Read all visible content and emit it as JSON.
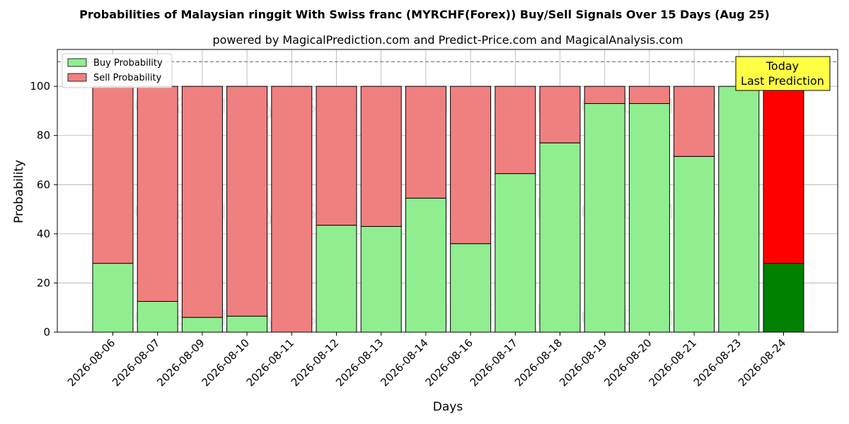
{
  "chart_data": {
    "type": "bar",
    "stacked": true,
    "title": "Probabilities of Malaysian ringgit With Swiss franc (MYRCHF(Forex)) Buy/Sell Signals Over 15 Days (Aug 25)",
    "subtitle": "powered by MagicalPrediction.com and Predict-Price.com and MagicalAnalysis.com",
    "xlabel": "Days",
    "ylabel": "Probability",
    "ylim": [
      0,
      115
    ],
    "yticks": [
      0,
      20,
      40,
      60,
      80,
      100
    ],
    "grid": true,
    "reference_line": 110,
    "legend_position": "top-left",
    "categories": [
      "2026-08-06",
      "2026-08-07",
      "2026-08-09",
      "2026-08-10",
      "2026-08-11",
      "2026-08-12",
      "2026-08-13",
      "2026-08-14",
      "2026-08-16",
      "2026-08-17",
      "2026-08-18",
      "2026-08-19",
      "2026-08-20",
      "2026-08-21",
      "2026-08-23",
      "2026-08-24"
    ],
    "series": [
      {
        "name": "Buy Probability",
        "color": "#90ee90",
        "highlight_color": "#008000",
        "values": [
          28,
          12.5,
          6,
          6.5,
          0,
          43.5,
          43,
          54.5,
          36,
          64.5,
          77,
          93,
          93,
          71.5,
          100,
          28
        ]
      },
      {
        "name": "Sell Probability",
        "color": "#f08080",
        "highlight_color": "#ff0000",
        "values": [
          72,
          87.5,
          94,
          93.5,
          100,
          56.5,
          57,
          45.5,
          64,
          35.5,
          23,
          7,
          7,
          28.5,
          0,
          72
        ]
      }
    ],
    "highlight_index": 15,
    "annotation": {
      "lines": [
        "Today",
        "Last Prediction"
      ],
      "background": "#ffff44"
    },
    "watermarks": [
      "MagicalAnalysis.com",
      "MagicalPrediction.com"
    ]
  }
}
